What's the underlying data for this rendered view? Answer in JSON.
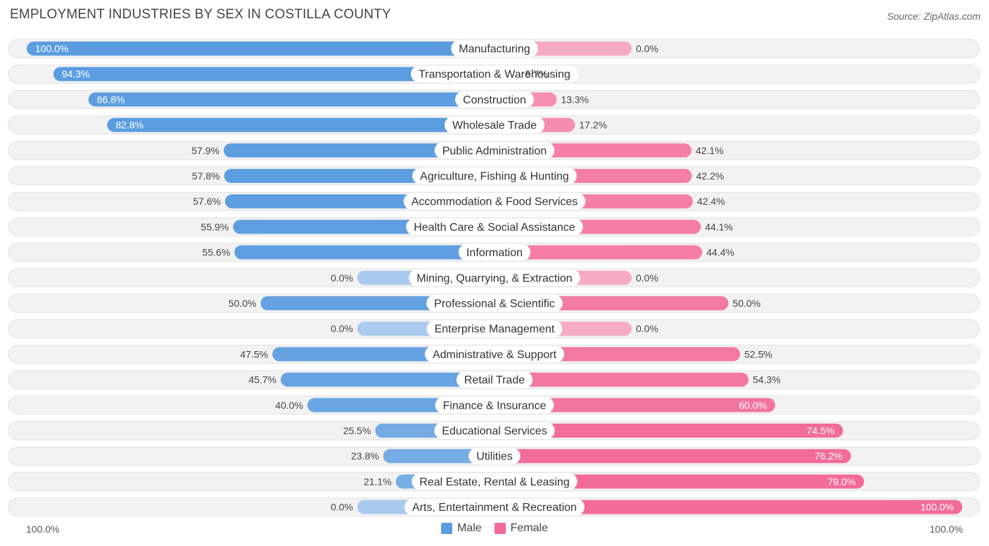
{
  "header": {
    "title": "EMPLOYMENT INDUSTRIES BY SEX IN COSTILLA COUNTY",
    "source": "Source: ZipAtlas.com"
  },
  "axis": {
    "left_label": "100.0%",
    "right_label": "100.0%"
  },
  "legend": {
    "male_label": "Male",
    "female_label": "Female"
  },
  "colors": {
    "male": "#5b9de0",
    "male_light": "#a9c9ee",
    "female": "#f26b98",
    "female_light": "#f7aac4",
    "row_bg": "#f2f2f2"
  },
  "chart_data": {
    "type": "bar",
    "orientation": "horizontal-diverging",
    "title": "EMPLOYMENT INDUSTRIES BY SEX IN COSTILLA COUNTY",
    "xlim": [
      0,
      100
    ],
    "categories": [
      "Manufacturing",
      "Transportation & Warehousing",
      "Construction",
      "Wholesale Trade",
      "Public Administration",
      "Agriculture, Fishing & Hunting",
      "Accommodation & Food Services",
      "Health Care & Social Assistance",
      "Information",
      "Mining, Quarrying, & Extraction",
      "Professional & Scientific",
      "Enterprise Management",
      "Administrative & Support",
      "Retail Trade",
      "Finance & Insurance",
      "Educational Services",
      "Utilities",
      "Real Estate, Rental & Leasing",
      "Arts, Entertainment & Recreation"
    ],
    "series": [
      {
        "name": "Male",
        "values": [
          100.0,
          94.3,
          86.8,
          82.8,
          57.9,
          57.8,
          57.6,
          55.9,
          55.6,
          0.0,
          50.0,
          0.0,
          47.5,
          45.7,
          40.0,
          25.5,
          23.8,
          21.1,
          0.0
        ],
        "labels": [
          "100.0%",
          "94.3%",
          "86.8%",
          "82.8%",
          "57.9%",
          "57.8%",
          "57.6%",
          "55.9%",
          "55.6%",
          "0.0%",
          "50.0%",
          "0.0%",
          "47.5%",
          "45.7%",
          "40.0%",
          "25.5%",
          "23.8%",
          "21.1%",
          "0.0%"
        ]
      },
      {
        "name": "Female",
        "values": [
          0.0,
          5.7,
          13.3,
          17.2,
          42.1,
          42.2,
          42.4,
          44.1,
          44.4,
          0.0,
          50.0,
          0.0,
          52.5,
          54.3,
          60.0,
          74.5,
          76.2,
          79.0,
          100.0
        ],
        "labels": [
          "0.0%",
          "5.7%",
          "13.3%",
          "17.2%",
          "42.1%",
          "42.2%",
          "42.4%",
          "44.1%",
          "44.4%",
          "0.0%",
          "50.0%",
          "0.0%",
          "52.5%",
          "54.3%",
          "60.0%",
          "74.5%",
          "76.2%",
          "79.0%",
          "100.0%"
        ]
      }
    ]
  }
}
